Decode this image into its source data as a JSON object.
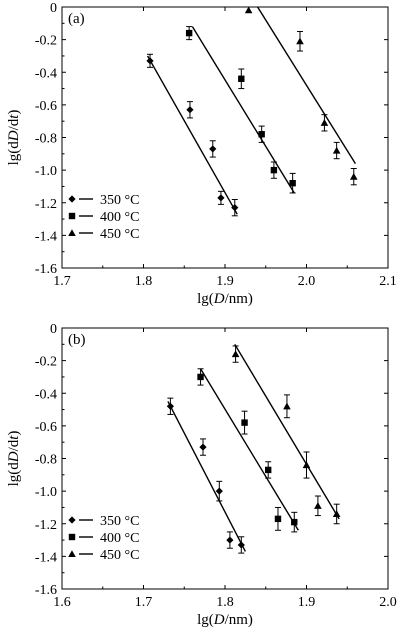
{
  "chart_data": [
    {
      "panel_label": "(a)",
      "type": "scatter",
      "xlabel_parts": [
        "lg(",
        "D",
        "/nm)"
      ],
      "ylabel_parts": [
        "lg(d",
        "D",
        "/d",
        "t",
        ")"
      ],
      "xlim": [
        1.7,
        2.1
      ],
      "ylim": [
        -1.6,
        0.0
      ],
      "xticks": [
        1.7,
        1.8,
        1.9,
        2.0,
        2.1
      ],
      "xtick_labels": [
        "1.7",
        "1.8",
        "1.9",
        "2.0",
        "2.1"
      ],
      "yticks": [
        0.0,
        -0.2,
        -0.4,
        -0.6,
        -0.8,
        -1.0,
        -1.2,
        -1.4,
        -1.6
      ],
      "ytick_labels": [
        "0",
        "-0.2",
        "-0.4",
        "-0.6",
        "-0.8",
        "-1.0",
        "-1.2",
        "-1.4",
        "-1.6"
      ],
      "legend_position": "bottom-left",
      "series": [
        {
          "name": "350 °C",
          "marker": "diamond",
          "points": [
            {
              "x": 1.808,
              "y": -0.33,
              "err": 0.04
            },
            {
              "x": 1.857,
              "y": -0.63,
              "err": 0.05
            },
            {
              "x": 1.885,
              "y": -0.87,
              "err": 0.05
            },
            {
              "x": 1.895,
              "y": -1.17,
              "err": 0.04
            },
            {
              "x": 1.912,
              "y": -1.23,
              "err": 0.05
            }
          ],
          "fit_line": [
            [
              1.805,
              -0.3
            ],
            [
              1.915,
              -1.27
            ]
          ]
        },
        {
          "name": "400 °C",
          "marker": "square",
          "points": [
            {
              "x": 1.856,
              "y": -0.16,
              "err": 0.04
            },
            {
              "x": 1.92,
              "y": -0.44,
              "err": 0.06
            },
            {
              "x": 1.945,
              "y": -0.78,
              "err": 0.05
            },
            {
              "x": 1.96,
              "y": -1.0,
              "err": 0.05
            },
            {
              "x": 1.983,
              "y": -1.08,
              "err": 0.06
            }
          ],
          "fit_line": [
            [
              1.86,
              -0.12
            ],
            [
              1.985,
              -1.14
            ]
          ]
        },
        {
          "name": "450 °C",
          "marker": "triangle",
          "points": [
            {
              "x": 1.929,
              "y": -0.02,
              "err": 0.0
            },
            {
              "x": 1.992,
              "y": -0.21,
              "err": 0.06
            },
            {
              "x": 2.022,
              "y": -0.71,
              "err": 0.05
            },
            {
              "x": 2.037,
              "y": -0.88,
              "err": 0.05
            },
            {
              "x": 2.058,
              "y": -1.04,
              "err": 0.05
            }
          ],
          "fit_line": [
            [
              1.94,
              0.0
            ],
            [
              2.06,
              -0.96
            ]
          ]
        }
      ]
    },
    {
      "panel_label": "(b)",
      "type": "scatter",
      "xlabel_parts": [
        "lg(",
        "D",
        "/nm)"
      ],
      "ylabel_parts": [
        "lg(d",
        "D",
        "/d",
        "t",
        ")"
      ],
      "xlim": [
        1.6,
        2.0
      ],
      "ylim": [
        -1.6,
        0.0
      ],
      "xticks": [
        1.6,
        1.7,
        1.8,
        1.9,
        2.0
      ],
      "xtick_labels": [
        "1.6",
        "1.7",
        "1.8",
        "1.9",
        "2.0"
      ],
      "yticks": [
        0.0,
        -0.2,
        -0.4,
        -0.6,
        -0.8,
        -1.0,
        -1.2,
        -1.4,
        -1.6
      ],
      "ytick_labels": [
        "0",
        "-0.2",
        "-0.4",
        "-0.6",
        "-0.8",
        "-1.0",
        "-1.2",
        "-1.4",
        "-1.6"
      ],
      "legend_position": "bottom-left",
      "series": [
        {
          "name": "350 °C",
          "marker": "diamond",
          "points": [
            {
              "x": 1.733,
              "y": -0.48,
              "err": 0.05
            },
            {
              "x": 1.773,
              "y": -0.73,
              "err": 0.05
            },
            {
              "x": 1.793,
              "y": -1.0,
              "err": 0.06
            },
            {
              "x": 1.806,
              "y": -1.3,
              "err": 0.05
            },
            {
              "x": 1.82,
              "y": -1.33,
              "err": 0.05
            }
          ],
          "fit_line": [
            [
              1.73,
              -0.45
            ],
            [
              1.825,
              -1.37
            ]
          ]
        },
        {
          "name": "400 °C",
          "marker": "square",
          "points": [
            {
              "x": 1.77,
              "y": -0.3,
              "err": 0.05
            },
            {
              "x": 1.824,
              "y": -0.58,
              "err": 0.07
            },
            {
              "x": 1.853,
              "y": -0.87,
              "err": 0.05
            },
            {
              "x": 1.865,
              "y": -1.17,
              "err": 0.07
            },
            {
              "x": 1.885,
              "y": -1.19,
              "err": 0.06
            }
          ],
          "fit_line": [
            [
              1.77,
              -0.25
            ],
            [
              1.89,
              -1.24
            ]
          ]
        },
        {
          "name": "450 °C",
          "marker": "triangle",
          "points": [
            {
              "x": 1.813,
              "y": -0.16,
              "err": 0.05
            },
            {
              "x": 1.876,
              "y": -0.48,
              "err": 0.07
            },
            {
              "x": 1.9,
              "y": -0.84,
              "err": 0.08
            },
            {
              "x": 1.914,
              "y": -1.09,
              "err": 0.06
            },
            {
              "x": 1.937,
              "y": -1.14,
              "err": 0.06
            }
          ],
          "fit_line": [
            [
              1.812,
              -0.1
            ],
            [
              1.94,
              -1.17
            ]
          ]
        }
      ]
    }
  ]
}
